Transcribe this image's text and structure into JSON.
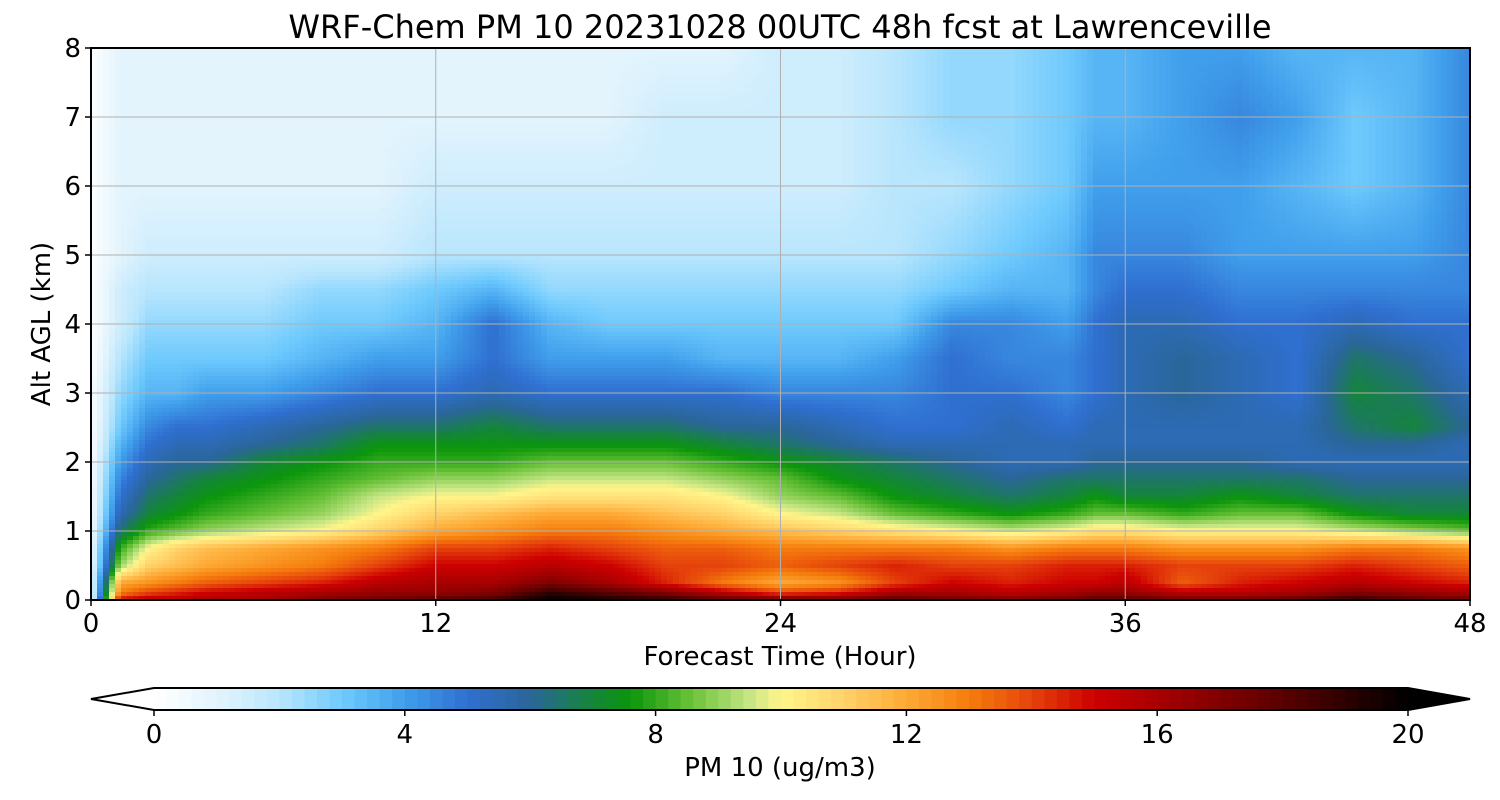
{
  "chart_data": {
    "type": "heatmap",
    "title": "WRF-Chem PM 10  20231028 00UTC 48h fcst at Lawrenceville",
    "xlabel": "Forecast Time (Hour)",
    "ylabel": "Alt AGL (km)",
    "xlim": [
      0,
      48
    ],
    "ylim": [
      0,
      8
    ],
    "xticks": [
      0,
      12,
      24,
      36,
      48
    ],
    "yticks": [
      0,
      1,
      2,
      3,
      4,
      5,
      6,
      7,
      8
    ],
    "grid": true,
    "colorbar": {
      "label": "PM 10  (ug/m3)",
      "range": [
        0,
        20
      ],
      "ticks": [
        0,
        4,
        8,
        12,
        16,
        20
      ],
      "extend": "both",
      "orientation": "horizontal"
    },
    "x": [
      0,
      1,
      2,
      3,
      4,
      6,
      8,
      10,
      12,
      14,
      16,
      18,
      20,
      22,
      24,
      26,
      28,
      30,
      32,
      34,
      35,
      36,
      38,
      40,
      42,
      44,
      46,
      48
    ],
    "y": [
      0,
      0.1,
      0.25,
      0.5,
      0.75,
      1.0,
      1.25,
      1.5,
      1.75,
      2.0,
      2.25,
      2.5,
      3.0,
      3.5,
      4.0,
      4.5,
      5.0,
      6.0,
      7.0,
      8.0
    ],
    "values": [
      [
        0.5,
        15,
        15.5,
        15.5,
        16,
        16,
        17,
        17.5,
        18,
        18.5,
        20,
        19.5,
        19,
        18,
        17.5,
        17.5,
        18,
        17.5,
        17,
        17.5,
        18,
        18,
        17.5,
        17.5,
        18,
        19,
        18,
        17.5
      ],
      [
        0.5,
        13,
        14,
        14.5,
        15,
        15.5,
        16,
        16.5,
        16.5,
        17,
        19,
        18,
        17,
        15.5,
        14,
        14.5,
        16,
        16,
        15.5,
        16,
        16.5,
        16.5,
        15.5,
        15.5,
        16,
        17,
        16.5,
        16
      ],
      [
        0.5,
        12,
        12.5,
        13,
        13.5,
        14,
        14.5,
        15.5,
        16,
        16,
        17,
        16,
        14.5,
        13,
        12,
        12.5,
        14,
        15,
        14.5,
        15,
        15,
        15.5,
        13.5,
        14.5,
        15,
        15.5,
        15,
        14.5
      ],
      [
        0.5,
        9,
        11,
        11.5,
        12,
        12.5,
        13,
        14,
        15,
        15,
        15.5,
        15,
        14,
        14,
        13.5,
        14,
        14.5,
        14,
        14,
        14.5,
        14.5,
        14.5,
        14,
        14,
        14,
        14.5,
        14,
        13.5
      ],
      [
        0.5,
        8,
        10,
        11,
        11.5,
        12,
        12.5,
        13,
        14,
        14,
        14.5,
        14,
        13.5,
        13.5,
        13,
        13,
        13,
        13,
        12.5,
        13,
        13,
        13,
        12.5,
        12.5,
        12.5,
        13,
        13,
        12.5
      ],
      [
        0.4,
        6.5,
        8,
        8.5,
        9,
        9.5,
        10,
        11,
        12,
        12.5,
        13,
        13,
        12.5,
        12,
        11.5,
        11,
        10.5,
        10,
        9.5,
        10,
        10.5,
        10.5,
        10,
        10,
        10,
        9.5,
        9,
        8.5
      ],
      [
        0.4,
        5.5,
        7,
        7.5,
        8,
        8.5,
        9,
        10,
        11,
        11.5,
        12,
        12,
        11.5,
        11,
        10,
        9.5,
        8.5,
        8,
        7.5,
        8,
        8.5,
        8.5,
        8,
        8.5,
        8.5,
        7.5,
        7,
        7
      ],
      [
        0.3,
        5,
        6.5,
        7,
        7.5,
        8,
        8.5,
        9.5,
        10,
        10,
        10.5,
        10.5,
        10.5,
        10,
        9,
        8.5,
        7.5,
        7,
        6.5,
        7,
        7.5,
        7,
        7,
        7.5,
        7,
        6.5,
        6.5,
        6.5
      ],
      [
        0.3,
        4.5,
        6,
        6.5,
        7,
        7.5,
        8,
        8.5,
        9,
        9,
        9.5,
        9.5,
        9.5,
        9,
        8.5,
        7.5,
        7,
        6.5,
        6,
        6.5,
        6.5,
        6.5,
        6.5,
        6.5,
        6.5,
        6,
        6,
        6
      ],
      [
        0.3,
        4,
        5.5,
        6,
        6,
        7,
        7.5,
        8,
        8,
        8,
        8.5,
        8.5,
        8.5,
        8,
        7.5,
        7,
        6.5,
        6,
        5.5,
        5.5,
        6,
        6,
        6,
        6,
        5.5,
        5.5,
        5.5,
        5.5
      ],
      [
        0.2,
        3.5,
        5,
        5.5,
        5.5,
        6,
        6.5,
        7.5,
        7.5,
        7.5,
        7.5,
        7.5,
        7.5,
        7,
        6.5,
        6,
        5.5,
        5.5,
        5.5,
        5.5,
        5.5,
        5.5,
        5.5,
        5.5,
        5.5,
        6,
        6,
        5.5
      ],
      [
        0.2,
        3,
        4.5,
        5,
        5,
        5.5,
        6,
        6.5,
        6.5,
        7,
        6.5,
        6.5,
        6.5,
        6,
        6,
        5.5,
        5,
        5,
        5.5,
        5,
        5.5,
        5.5,
        5.5,
        5.5,
        5.5,
        6.5,
        7,
        6
      ],
      [
        0.2,
        2.5,
        3.5,
        3.5,
        4,
        4,
        4.5,
        5,
        5,
        5.5,
        5,
        5,
        5,
        5,
        4.5,
        4.5,
        4.5,
        5,
        5,
        4.5,
        5,
        5.5,
        6,
        5.5,
        5,
        7,
        6.5,
        5.5
      ],
      [
        0.1,
        2,
        3,
        3,
        3,
        3,
        3.5,
        4,
        4,
        5,
        4,
        4,
        4,
        3.5,
        3.5,
        3.5,
        4,
        5,
        4.5,
        4.5,
        5,
        5.5,
        6,
        5.5,
        5,
        6.5,
        6,
        5
      ],
      [
        0.1,
        1.5,
        2.5,
        2.5,
        2.5,
        2.5,
        3,
        3,
        3.5,
        5,
        3.5,
        3,
        3,
        3,
        3,
        3,
        3,
        4.5,
        4.5,
        4,
        5,
        5.5,
        5.5,
        5,
        5,
        5.5,
        5,
        5
      ],
      [
        0.1,
        1.5,
        2,
        2,
        2,
        2,
        2.5,
        2.5,
        3,
        3.5,
        2.5,
        2.5,
        2.5,
        2.5,
        2.5,
        2.5,
        2.5,
        3,
        3.5,
        3.5,
        4.5,
        5,
        5,
        4.5,
        4.5,
        4.5,
        4.5,
        4.5
      ],
      [
        0.1,
        1,
        1.5,
        1.5,
        1.5,
        1.5,
        1.5,
        1.5,
        2,
        2,
        2,
        2,
        2,
        2,
        2,
        2,
        2,
        2.5,
        3,
        3.5,
        4.5,
        4.5,
        4.5,
        4,
        4,
        4,
        4,
        4.5
      ],
      [
        0.1,
        1,
        1,
        1,
        1,
        1,
        1,
        1,
        1.5,
        1.5,
        1.5,
        1.5,
        1.5,
        1.5,
        1.5,
        1.5,
        2,
        2,
        2.5,
        3,
        4,
        4,
        4,
        4,
        3.5,
        3,
        3.5,
        4.5
      ],
      [
        0.1,
        1,
        1,
        1,
        1,
        1,
        1,
        1,
        1,
        1,
        1,
        1,
        1.5,
        1.5,
        1.5,
        1.5,
        2,
        2.5,
        2.5,
        3,
        3.5,
        3.5,
        4,
        4.5,
        4,
        3,
        3.5,
        4.5
      ],
      [
        0.1,
        1,
        1,
        1,
        1,
        1,
        1,
        1,
        1,
        1,
        1,
        1,
        1,
        1,
        1.5,
        1.5,
        2,
        2.5,
        2.5,
        3,
        3.5,
        3.5,
        4,
        4,
        3.5,
        3.5,
        3.5,
        4.5
      ]
    ],
    "colormap": [
      {
        "v": 0,
        "c": "#ffffff"
      },
      {
        "v": 1,
        "c": "#e3f4fd"
      },
      {
        "v": 2,
        "c": "#b9e6fd"
      },
      {
        "v": 3,
        "c": "#6fcafd"
      },
      {
        "v": 4,
        "c": "#409fec"
      },
      {
        "v": 5,
        "c": "#2f6fd0"
      },
      {
        "v": 6,
        "c": "#2a6699"
      },
      {
        "v": 7,
        "c": "#14853a"
      },
      {
        "v": 7.6,
        "c": "#0c960c"
      },
      {
        "v": 8.5,
        "c": "#63bf34"
      },
      {
        "v": 9.5,
        "c": "#c6e685"
      },
      {
        "v": 10,
        "c": "#fff58a"
      },
      {
        "v": 11,
        "c": "#ffd36a"
      },
      {
        "v": 12,
        "c": "#fda935"
      },
      {
        "v": 13,
        "c": "#f57d0c"
      },
      {
        "v": 14,
        "c": "#e5420b"
      },
      {
        "v": 15,
        "c": "#cd0000"
      },
      {
        "v": 16,
        "c": "#a80000"
      },
      {
        "v": 18,
        "c": "#5a0000"
      },
      {
        "v": 20,
        "c": "#000000"
      }
    ]
  }
}
